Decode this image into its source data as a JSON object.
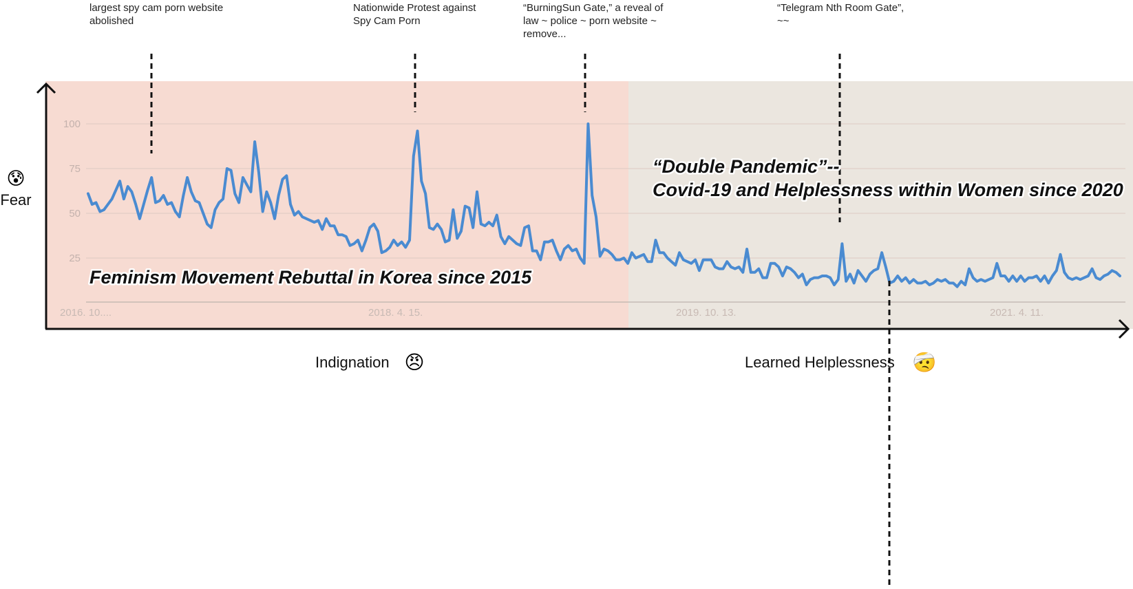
{
  "chart_data": {
    "type": "line",
    "title": "",
    "xlabel": "",
    "ylabel": "Fear",
    "ylim": [
      0,
      100
    ],
    "y_ticks": [
      "25",
      "50",
      "75",
      "100"
    ],
    "x_ticks": [
      "2016. 10....",
      "2018. 4. 15.",
      "2019. 10. 13.",
      "2021. 4. 11."
    ],
    "grid": true,
    "series": [
      {
        "name": "Fear",
        "color": "#4a8bd1",
        "values": [
          61,
          55,
          56,
          51,
          52,
          55,
          58,
          63,
          68,
          58,
          65,
          62,
          55,
          47,
          55,
          63,
          70,
          56,
          57,
          60,
          55,
          56,
          51,
          48,
          60,
          70,
          62,
          57,
          56,
          50,
          44,
          42,
          52,
          56,
          58,
          75,
          74,
          61,
          56,
          70,
          66,
          62,
          90,
          73,
          51,
          62,
          56,
          47,
          60,
          69,
          71,
          55,
          49,
          51,
          48,
          47,
          46,
          45,
          46,
          41,
          47,
          43,
          43,
          38,
          38,
          37,
          32,
          33,
          35,
          29,
          35,
          42,
          44,
          40,
          28,
          29,
          31,
          35,
          32,
          34,
          31,
          35,
          82,
          96,
          68,
          61,
          42,
          41,
          44,
          41,
          34,
          35,
          52,
          36,
          40,
          54,
          53,
          42,
          62,
          44,
          43,
          45,
          43,
          49,
          37,
          33,
          37,
          35,
          33,
          32,
          42,
          43,
          29,
          29,
          24,
          34,
          34,
          35,
          29,
          24,
          30,
          32,
          29,
          30,
          25,
          22,
          100,
          60,
          48,
          26,
          30,
          29,
          27,
          24,
          24,
          25,
          22,
          28,
          25,
          26,
          27,
          23,
          23,
          35,
          28,
          28,
          25,
          23,
          21,
          28,
          24,
          23,
          22,
          24,
          18,
          24,
          24,
          24,
          20,
          19,
          19,
          23,
          20,
          19,
          20,
          17,
          30,
          17,
          17,
          19,
          14,
          14,
          22,
          22,
          20,
          15,
          20,
          19,
          17,
          14,
          16,
          10,
          13,
          14,
          14,
          15,
          15,
          14,
          10,
          13,
          33,
          12,
          16,
          11,
          18,
          15,
          12,
          16,
          18,
          19,
          28,
          20,
          11,
          12,
          15,
          12,
          14,
          11,
          13,
          11,
          11,
          12,
          10,
          11,
          13,
          12,
          13,
          11,
          11,
          9,
          12,
          10,
          19,
          14,
          12,
          13,
          12,
          13,
          14,
          22,
          15,
          15,
          12,
          15,
          12,
          15,
          12,
          14,
          14,
          15,
          12,
          15,
          11,
          15,
          18,
          27,
          17,
          14,
          13,
          14,
          13,
          14,
          15,
          19,
          14,
          13,
          15,
          16,
          18,
          17,
          15
        ]
      }
    ],
    "regions": [
      {
        "label": "Feminism Movement  Rebuttal in Korea since 2015",
        "axis_label": "Indignation",
        "emoji": "😠",
        "color": "#f7dbd2"
      },
      {
        "label": "“Double Pandemic”--",
        "label_line2": "Covid-19 and Helplessness within Women since 2020",
        "axis_label": "Learned Helplessness",
        "emoji": "🤕",
        "color": "#ebe6df"
      }
    ],
    "annotations": [
      {
        "lines": [
          "largest spy cam porn website",
          "abolished"
        ]
      },
      {
        "lines": [
          "Nationwide Protest against",
          "Spy Cam Porn"
        ]
      },
      {
        "lines": [
          "“BurningSun Gate,” a reveal of",
          "law ~ police ~ porn website ~",
          "remove..."
        ]
      },
      {
        "lines": [
          "“Telegram Nth Room Gate”,",
          "~~"
        ]
      }
    ],
    "fear_emoji": "😰"
  }
}
